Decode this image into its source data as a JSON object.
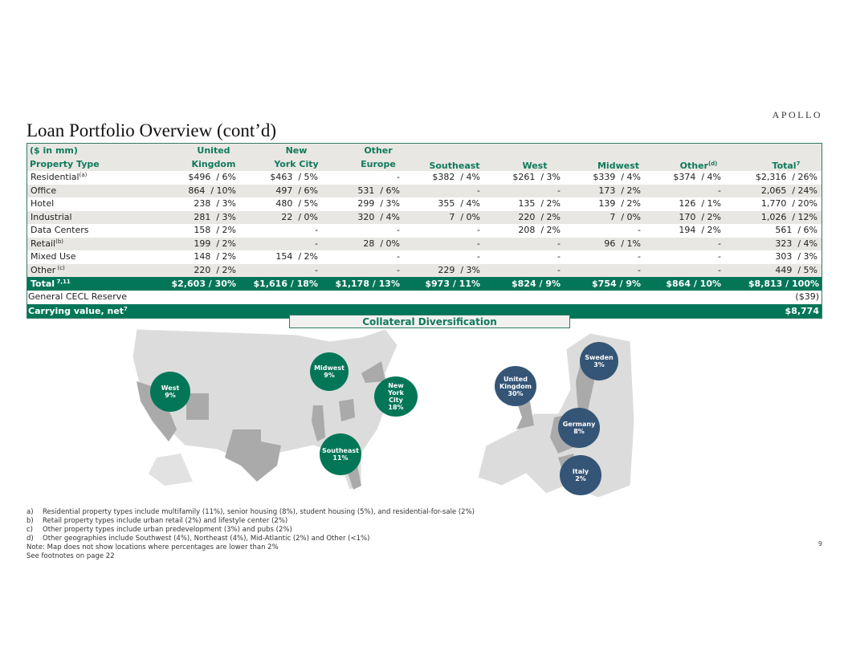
{
  "logo": "APOLLO",
  "title": "Loan Portfolio Overview (cont’d)",
  "table": {
    "units": "($ in mm)",
    "row_header": "Property Type",
    "columns": [
      {
        "l1": "United",
        "l2": "Kingdom"
      },
      {
        "l1": "New",
        "l2": "York City"
      },
      {
        "l1": "Other",
        "l2": "Europe"
      },
      {
        "l1": "",
        "l2": "Southeast"
      },
      {
        "l1": "",
        "l2": "West"
      },
      {
        "l1": "",
        "l2": "Midwest"
      },
      {
        "l1": "",
        "l2": "Other",
        "sup": "(d)"
      },
      {
        "l1": "",
        "l2": "Total",
        "sup": "7"
      }
    ],
    "rows": [
      {
        "label": "Residential",
        "sup": "(a)",
        "values": [
          "$496  / 6%",
          "$463  / 5%",
          "-",
          "$382  / 4%",
          "$261  / 3%",
          "$339  / 4%",
          "$374  / 4%",
          "$2,316  / 26%"
        ]
      },
      {
        "label": "Office",
        "sup": "",
        "values": [
          "864  / 10%",
          "497  / 6%",
          "531  / 6%",
          "-",
          "-",
          "173  / 2%",
          "-",
          "2,065  / 24%"
        ]
      },
      {
        "label": "Hotel",
        "sup": "",
        "values": [
          "238  / 3%",
          "480  / 5%",
          "299  / 3%",
          "355  / 4%",
          "135  / 2%",
          "139  / 2%",
          "126  / 1%",
          "1,770  / 20%"
        ]
      },
      {
        "label": "Industrial",
        "sup": "",
        "values": [
          "281  / 3%",
          "22  / 0%",
          "320  / 4%",
          "7  / 0%",
          "220  / 2%",
          "7  / 0%",
          "170  / 2%",
          "1,026  / 12%"
        ]
      },
      {
        "label": "Data Centers",
        "sup": "",
        "values": [
          "158  / 2%",
          "-",
          "-",
          "-",
          "208  / 2%",
          "-",
          "194  / 2%",
          "561  / 6%"
        ]
      },
      {
        "label": "Retail",
        "sup": "(b)",
        "values": [
          "199  / 2%",
          "-",
          "28  / 0%",
          "-",
          "-",
          "96  / 1%",
          "-",
          "323  / 4%"
        ]
      },
      {
        "label": "Mixed Use",
        "sup": "",
        "values": [
          "148  / 2%",
          "154  / 2%",
          "-",
          "-",
          "-",
          "-",
          "-",
          "303  / 3%"
        ]
      },
      {
        "label": "Other",
        "sup": " (c)",
        "values": [
          "220  / 2%",
          "-",
          "-",
          "229  / 3%",
          "-",
          "-",
          "-",
          "449  / 5%"
        ]
      }
    ],
    "total": {
      "label": "Total",
      "sup": " 7,11",
      "values": [
        "$2,603 / 30%",
        "$1,616 / 18%",
        "$1,178 / 13%",
        "$973 / 11%",
        "$824 / 9%",
        "$754 / 9%",
        "$864 / 10%",
        "$8,813 / 100%"
      ]
    },
    "cecl": {
      "label": "General CECL Reserve",
      "value": "($39)"
    },
    "carrying": {
      "label": "Carrying value, net",
      "sup": "7",
      "value": "$8,774"
    }
  },
  "map": {
    "title": "Collateral Diversification",
    "us_regions": [
      {
        "name": "West",
        "pct": "9%"
      },
      {
        "name": "Midwest",
        "pct": "9%"
      },
      {
        "name": "New York City",
        "pct": "18%"
      },
      {
        "name": "Southeast",
        "pct": "11%"
      }
    ],
    "europe_regions": [
      {
        "name": "United Kingdom",
        "pct": "30%"
      },
      {
        "name": "Sweden",
        "pct": "3%"
      },
      {
        "name": "Germany",
        "pct": "8%"
      },
      {
        "name": "Italy",
        "pct": "2%"
      }
    ],
    "colors": {
      "us": "#037658",
      "europe": "#355576"
    }
  },
  "notes": [
    {
      "k": "a)",
      "t": "Residential property types include multifamily (11%), senior housing (8%), student housing (5%), and residential-for-sale (2%)"
    },
    {
      "k": "b)",
      "t": "Retail property types include urban retail (2%) and lifestyle center (2%)"
    },
    {
      "k": "c)",
      "t": "Other property types include urban predevelopment (3%) and pubs (2%)"
    },
    {
      "k": "d)",
      "t": "Other geographies include Southwest (4%), Northeast (4%), Mid-Atlantic (2%) and Other (<1%)"
    }
  ],
  "note_line": "Note: Map does not show locations where percentages are lower than 2%",
  "see_line": "See footnotes on page 22",
  "page_number": "9"
}
